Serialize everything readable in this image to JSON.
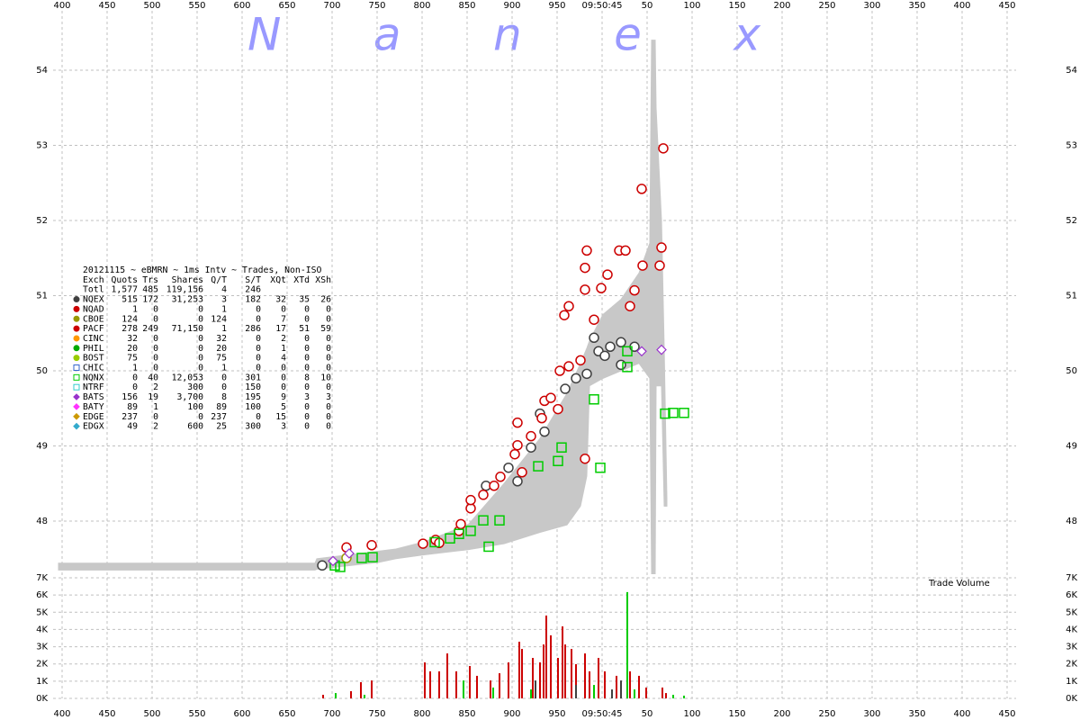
{
  "watermark": "Nanex",
  "chart_data": [
    {
      "type": "scatter",
      "stats_title": "20121115 ~ eBMRN ~ 1ms Intv ~ Trades, Non-ISO",
      "stats_columns": [
        "Exch",
        "Quots",
        "Trs",
        "Shares",
        "Q/T",
        "S/T",
        "XQt",
        "XTd",
        "XSh"
      ],
      "stats_total": {
        "label": "Totl",
        "values": [
          "1,577",
          "485",
          "119,156",
          "4",
          "246"
        ]
      },
      "xlim": [
        390,
        1460
      ],
      "xticks": [
        400,
        450,
        500,
        550,
        600,
        650,
        700,
        750,
        800,
        850,
        900,
        950,
        {
          "value": 1000,
          "label": "09:50:45"
        },
        {
          "value": 1050,
          "label": "50"
        },
        {
          "value": 1100,
          "label": "100"
        },
        {
          "value": 1150,
          "label": "150"
        },
        {
          "value": 1200,
          "label": "200"
        },
        {
          "value": 1250,
          "label": "250"
        },
        {
          "value": 1300,
          "label": "300"
        },
        {
          "value": 1350,
          "label": "350"
        },
        {
          "value": 1400,
          "label": "400"
        },
        {
          "value": 1450,
          "label": "450"
        }
      ],
      "ylim": [
        47.27,
        54.79
      ],
      "yticks": [
        48,
        49,
        50,
        51,
        52,
        53,
        54
      ],
      "grid": true,
      "band": {
        "color": "#c8c8c8",
        "x": [
          396,
          681,
          683,
          751,
          771,
          801,
          851,
          891,
          931,
          961,
          976,
          983,
          986,
          1001,
          1021,
          1041,
          1053,
          1055,
          1059,
          1060,
          1066,
          1069,
          1072
        ],
        "low": [
          47.35,
          47.35,
          47.36,
          47.45,
          47.5,
          47.55,
          47.62,
          47.7,
          47.85,
          47.95,
          48.2,
          48.6,
          49.8,
          49.9,
          50.0,
          50.1,
          49.9,
          47.3,
          47.3,
          49.8,
          49.8,
          48.2,
          48.2
        ],
        "high": [
          47.44,
          47.44,
          47.5,
          47.6,
          47.63,
          47.72,
          47.95,
          48.5,
          49.1,
          49.7,
          50.1,
          50.3,
          50.4,
          50.75,
          50.95,
          51.3,
          51.7,
          54.4,
          54.4,
          53.5,
          52.0,
          50.3,
          48.3
        ]
      },
      "series": [
        {
          "name": "NQEX",
          "color": "#404040",
          "marker": "circle",
          "stats": [
            "515",
            "172",
            "31,253",
            "3",
            "182",
            "32",
            "35",
            "26"
          ],
          "x": [
            689,
            871,
            896,
            921,
            936,
            959,
            971,
            983,
            991,
            996,
            1003,
            1009,
            1021,
            1036,
            931,
            906,
            1021
          ],
          "values": [
            47.41,
            48.47,
            48.71,
            48.98,
            49.19,
            49.76,
            49.9,
            49.96,
            50.44,
            50.26,
            50.2,
            50.32,
            50.38,
            50.32,
            49.43,
            48.53,
            50.08
          ]
        },
        {
          "name": "NQAD",
          "color": "#cc0000",
          "marker": "circle",
          "stats": [
            "1",
            "0",
            "0",
            "1",
            "0",
            "0",
            "0",
            "0"
          ]
        },
        {
          "name": "CBOE",
          "color": "#999900",
          "marker": "circle",
          "stats": [
            "124",
            "0",
            "0",
            "124",
            "0",
            "7",
            "0",
            "0"
          ],
          "x": [
            716
          ],
          "values": [
            47.51
          ]
        },
        {
          "name": "PACF",
          "color": "#cc0000",
          "marker": "circle",
          "stats": [
            "278",
            "249",
            "71,150",
            "1",
            "286",
            "17",
            "51",
            "59"
          ],
          "x": [
            716,
            744,
            801,
            815,
            819,
            841,
            843,
            854,
            854,
            868,
            880,
            887,
            903,
            906,
            921,
            906,
            933,
            936,
            943,
            953,
            963,
            963,
            976,
            981,
            983,
            981,
            991,
            999,
            1006,
            1019,
            1026,
            1031,
            1036,
            1045,
            1044,
            1068,
            1066,
            1064,
            981,
            951,
            958,
            911
          ],
          "values": [
            47.65,
            47.68,
            47.7,
            47.75,
            47.71,
            47.87,
            47.96,
            48.17,
            48.28,
            48.35,
            48.47,
            48.59,
            48.89,
            49.01,
            49.13,
            49.31,
            49.37,
            49.6,
            49.64,
            50.0,
            50.06,
            50.86,
            50.14,
            51.08,
            51.6,
            51.37,
            50.68,
            51.1,
            51.28,
            51.6,
            51.6,
            50.86,
            51.07,
            51.4,
            52.42,
            52.96,
            51.64,
            51.4,
            48.83,
            49.49,
            50.74,
            48.65
          ]
        },
        {
          "name": "CINC",
          "color": "#ff9900",
          "marker": "circle",
          "stats": [
            "32",
            "0",
            "0",
            "32",
            "0",
            "2",
            "0",
            "0"
          ]
        },
        {
          "name": "PHIL",
          "color": "#00aa00",
          "marker": "circle",
          "stats": [
            "20",
            "0",
            "0",
            "20",
            "0",
            "1",
            "0",
            "0"
          ]
        },
        {
          "name": "BOST",
          "color": "#99cc00",
          "marker": "circle",
          "stats": [
            "75",
            "0",
            "0",
            "75",
            "0",
            "4",
            "0",
            "0"
          ]
        },
        {
          "name": "CHIC",
          "color": "#3366cc",
          "marker": "square",
          "stats": [
            "1",
            "0",
            "0",
            "1",
            "0",
            "0",
            "0",
            "0"
          ]
        },
        {
          "name": "NQNX",
          "color": "#00cc00",
          "marker": "square",
          "stats": [
            "0",
            "40",
            "12,053",
            "0",
            "301",
            "0",
            "8",
            "10"
          ],
          "x": [
            703,
            709,
            733,
            745,
            814,
            831,
            841,
            854,
            868,
            874,
            886,
            929,
            951,
            955,
            991,
            998,
            1028,
            1028,
            1070,
            1079,
            1091
          ],
          "values": [
            47.41,
            47.39,
            47.51,
            47.52,
            47.72,
            47.77,
            47.83,
            47.87,
            48.01,
            47.66,
            48.01,
            48.73,
            48.8,
            48.98,
            49.62,
            48.71,
            50.26,
            50.05,
            49.43,
            49.44,
            49.44
          ]
        },
        {
          "name": "NTRF",
          "color": "#33cccc",
          "marker": "square",
          "stats": [
            "0",
            "2",
            "300",
            "0",
            "150",
            "0",
            "0",
            "0"
          ]
        },
        {
          "name": "BATS",
          "color": "#9933cc",
          "marker": "diamond",
          "stats": [
            "156",
            "19",
            "3,700",
            "8",
            "195",
            "9",
            "3",
            "3"
          ],
          "x": [
            701,
            719,
            1044,
            1066
          ],
          "values": [
            47.47,
            47.57,
            50.26,
            50.28
          ]
        },
        {
          "name": "BATY",
          "color": "#ff33ff",
          "marker": "diamond",
          "stats": [
            "89",
            "1",
            "100",
            "89",
            "100",
            "5",
            "0",
            "0"
          ]
        },
        {
          "name": "EDGE",
          "color": "#cc9900",
          "marker": "diamond",
          "stats": [
            "237",
            "0",
            "0",
            "237",
            "0",
            "15",
            "0",
            "0"
          ]
        },
        {
          "name": "EDGX",
          "color": "#33aacc",
          "marker": "diamond",
          "stats": [
            "49",
            "2",
            "600",
            "25",
            "300",
            "3",
            "0",
            "0"
          ]
        }
      ]
    },
    {
      "type": "bar",
      "title": "Trade Volume",
      "xlim": [
        390,
        1460
      ],
      "xticks": [
        400,
        450,
        500,
        550,
        600,
        650,
        700,
        750,
        800,
        850,
        900,
        950,
        {
          "value": 1000,
          "label": "09:50:45"
        },
        {
          "value": 1050,
          "label": "50"
        },
        {
          "value": 1100,
          "label": "100"
        },
        {
          "value": 1150,
          "label": "150"
        },
        {
          "value": 1200,
          "label": "200"
        },
        {
          "value": 1250,
          "label": "250"
        },
        {
          "value": 1300,
          "label": "300"
        },
        {
          "value": 1350,
          "label": "350"
        },
        {
          "value": 1400,
          "label": "400"
        },
        {
          "value": 1450,
          "label": "450"
        }
      ],
      "ylim": [
        0,
        7000
      ],
      "yticks": [
        {
          "value": 0,
          "label": "0K"
        },
        {
          "value": 1000,
          "label": "1K"
        },
        {
          "value": 2000,
          "label": "2K"
        },
        {
          "value": 3000,
          "label": "3K"
        },
        {
          "value": 4000,
          "label": "4K"
        },
        {
          "value": 5000,
          "label": "5K"
        },
        {
          "value": 6000,
          "label": "6K"
        },
        {
          "value": 7000,
          "label": "7K"
        }
      ],
      "grid": true,
      "series": [
        {
          "color": "#cc0000",
          "x": [
            690,
            721,
            732,
            744,
            803,
            809,
            819,
            828,
            838,
            853,
            861,
            876,
            886,
            896,
            908,
            911,
            923,
            931,
            935,
            938,
            943,
            951,
            956,
            959,
            966,
            971,
            981,
            986,
            996,
            1003,
            1016,
            1031,
            1041,
            1049,
            1067,
            1071
          ],
          "values": [
            210,
            420,
            940,
            1040,
            2090,
            1570,
            1570,
            2610,
            1570,
            1880,
            1310,
            1040,
            1460,
            2090,
            3290,
            2870,
            2350,
            2090,
            3130,
            4810,
            3660,
            2350,
            4180,
            3130,
            2870,
            1990,
            2610,
            1570,
            2350,
            1570,
            1310,
            1570,
            1310,
            630,
            630,
            310
          ]
        },
        {
          "color": "#00cc00",
          "x": [
            704,
            736,
            846,
            879,
            921,
            991,
            1028,
            1036,
            1079,
            1091
          ],
          "values": [
            310,
            210,
            1040,
            630,
            520,
            780,
            6170,
            520,
            210,
            160
          ]
        },
        {
          "color": "#404040",
          "x": [
            926,
            971,
            1011,
            1021
          ],
          "values": [
            1040,
            780,
            520,
            1040
          ]
        }
      ]
    }
  ]
}
